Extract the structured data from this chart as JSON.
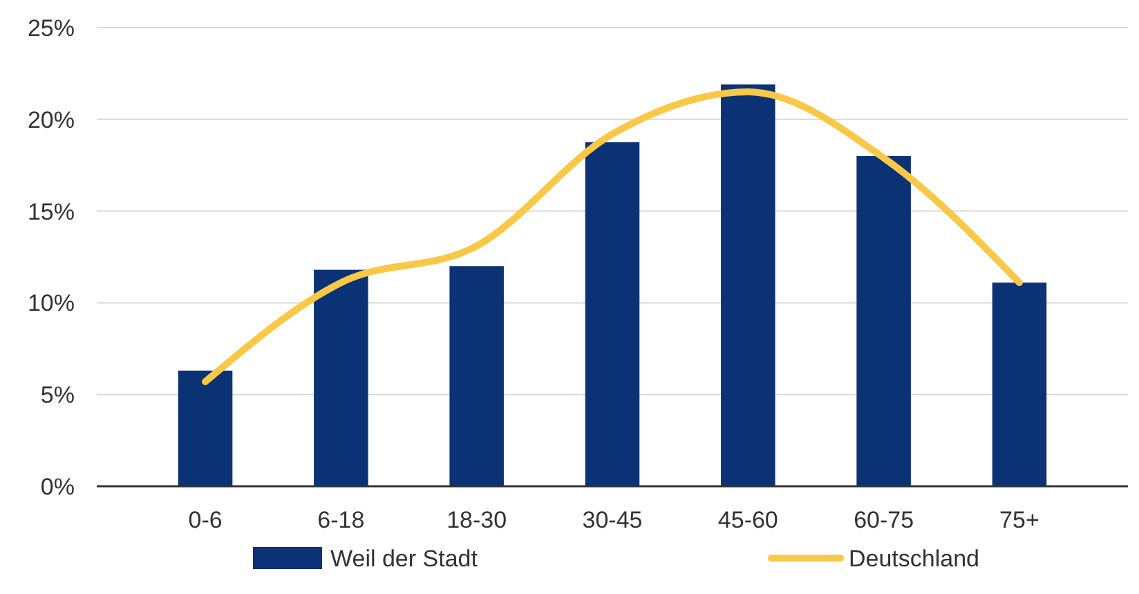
{
  "chart_data": {
    "type": "bar",
    "categories": [
      "0-6",
      "6-18",
      "18-30",
      "30-45",
      "45-60",
      "60-75",
      "75+"
    ],
    "series": [
      {
        "name": "Weil der Stadt",
        "color": "#0b3275",
        "values": [
          6.3,
          11.8,
          12.0,
          18.75,
          21.9,
          18.0,
          11.1
        ]
      },
      {
        "name": "Deutschland",
        "type": "line",
        "color": "#f9c846",
        "values": [
          5.7,
          11.1,
          13.1,
          19.2,
          21.5,
          17.9,
          11.1
        ]
      }
    ],
    "ylim": [
      0,
      25
    ],
    "yticks": [
      {
        "value": 0,
        "label": "0%"
      },
      {
        "value": 5,
        "label": "5%"
      },
      {
        "value": 10,
        "label": "10%"
      },
      {
        "value": 15,
        "label": "15%"
      },
      {
        "value": 20,
        "label": "20%"
      },
      {
        "value": 25,
        "label": "25%"
      }
    ],
    "grid": "y",
    "legend": "bottom"
  }
}
